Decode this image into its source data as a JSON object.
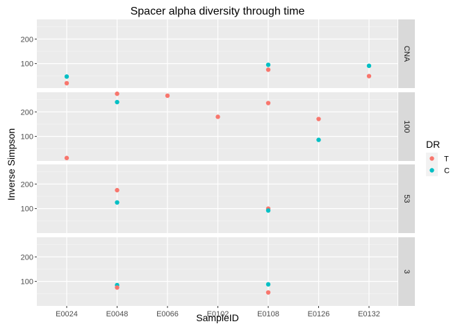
{
  "chart_data": {
    "type": "scatter",
    "title": "Spacer alpha diversity through time",
    "xlabel": "SampleID",
    "ylabel": "Inverse Simpson",
    "categories": [
      "E0024",
      "E0048",
      "E0066",
      "E0102",
      "E0108",
      "E0126",
      "E0132"
    ],
    "ylim": [
      0,
      280
    ],
    "yticks": [
      100,
      200
    ],
    "grid": true,
    "legend": {
      "title": "DR",
      "position": "right",
      "entries": [
        {
          "label": "T",
          "color": "#F8766D"
        },
        {
          "label": "C",
          "color": "#00BFC4"
        }
      ]
    },
    "panels": [
      {
        "label": "CNA",
        "points": [
          {
            "x": "E0024",
            "y": 47,
            "group": "C"
          },
          {
            "x": "E0024",
            "y": 20,
            "group": "T"
          },
          {
            "x": "E0108",
            "y": 95,
            "group": "C"
          },
          {
            "x": "E0108",
            "y": 75,
            "group": "T"
          },
          {
            "x": "E0132",
            "y": 91,
            "group": "C"
          },
          {
            "x": "E0132",
            "y": 49,
            "group": "T"
          }
        ]
      },
      {
        "label": "100",
        "points": [
          {
            "x": "E0024",
            "y": 12,
            "group": "T"
          },
          {
            "x": "E0048",
            "y": 274,
            "group": "T"
          },
          {
            "x": "E0048",
            "y": 240,
            "group": "C"
          },
          {
            "x": "E0066",
            "y": 266,
            "group": "T"
          },
          {
            "x": "E0102",
            "y": 180,
            "group": "T"
          },
          {
            "x": "E0108",
            "y": 236,
            "group": "T"
          },
          {
            "x": "E0126",
            "y": 171,
            "group": "T"
          },
          {
            "x": "E0126",
            "y": 86,
            "group": "C"
          }
        ]
      },
      {
        "label": "53",
        "points": [
          {
            "x": "E0048",
            "y": 175,
            "group": "T"
          },
          {
            "x": "E0048",
            "y": 125,
            "group": "C"
          },
          {
            "x": "E0108",
            "y": 100,
            "group": "T"
          },
          {
            "x": "E0108",
            "y": 92,
            "group": "C"
          }
        ]
      },
      {
        "label": "3",
        "points": [
          {
            "x": "E0048",
            "y": 85,
            "group": "C"
          },
          {
            "x": "E0048",
            "y": 75,
            "group": "T"
          },
          {
            "x": "E0108",
            "y": 88,
            "group": "C"
          },
          {
            "x": "E0108",
            "y": 55,
            "group": "T"
          }
        ]
      }
    ]
  }
}
